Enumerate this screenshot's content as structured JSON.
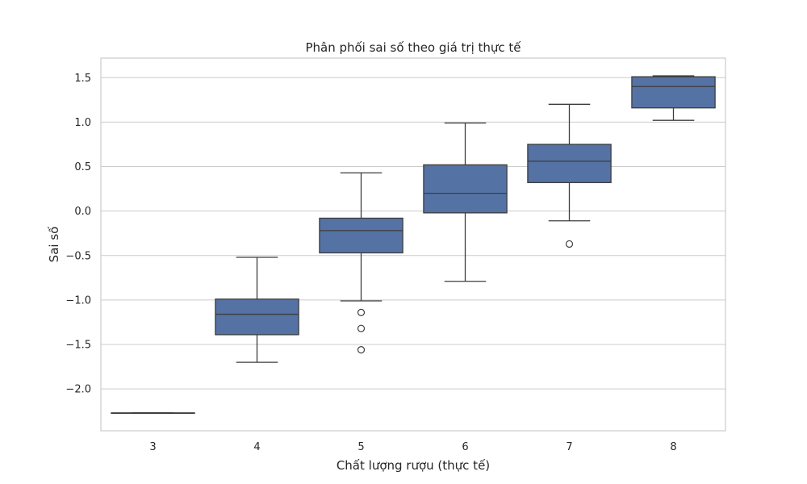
{
  "chart_data": {
    "type": "boxplot",
    "title": "Phân phối sai số theo giá trị thực tế",
    "xlabel": "Chất lượng rượu (thực tế)",
    "ylabel": "Sai số",
    "categories": [
      "3",
      "4",
      "5",
      "6",
      "7",
      "8"
    ],
    "yticks": [
      -2.0,
      -1.5,
      -1.0,
      -0.5,
      0.0,
      0.5,
      1.0,
      1.5
    ],
    "ytick_labels": [
      "−2.0",
      "−1.5",
      "−1.0",
      "−0.5",
      "0.0",
      "0.5",
      "1.0",
      "1.5"
    ],
    "ylim": [
      -2.47,
      1.72
    ],
    "grid": true,
    "box_color": "#5572a5",
    "line_color": "#3d3d3d",
    "boxes": [
      {
        "category": "3",
        "whisker_low": -2.27,
        "q1": -2.27,
        "median": -2.27,
        "q3": -2.27,
        "whisker_high": -2.27,
        "outliers": []
      },
      {
        "category": "4",
        "whisker_low": -1.7,
        "q1": -1.39,
        "median": -1.16,
        "q3": -0.99,
        "whisker_high": -0.52,
        "outliers": []
      },
      {
        "category": "5",
        "whisker_low": -1.01,
        "q1": -0.47,
        "median": -0.22,
        "q3": -0.08,
        "whisker_high": 0.43,
        "outliers": [
          -1.14,
          -1.32,
          -1.56
        ]
      },
      {
        "category": "6",
        "whisker_low": -0.79,
        "q1": -0.02,
        "median": 0.2,
        "q3": 0.52,
        "whisker_high": 0.99,
        "outliers": []
      },
      {
        "category": "7",
        "whisker_low": -0.11,
        "q1": 0.32,
        "median": 0.56,
        "q3": 0.75,
        "whisker_high": 1.2,
        "outliers": [
          -0.37
        ]
      },
      {
        "category": "8",
        "whisker_low": 1.02,
        "q1": 1.16,
        "median": 1.4,
        "q3": 1.51,
        "whisker_high": 1.52,
        "outliers": []
      }
    ]
  }
}
